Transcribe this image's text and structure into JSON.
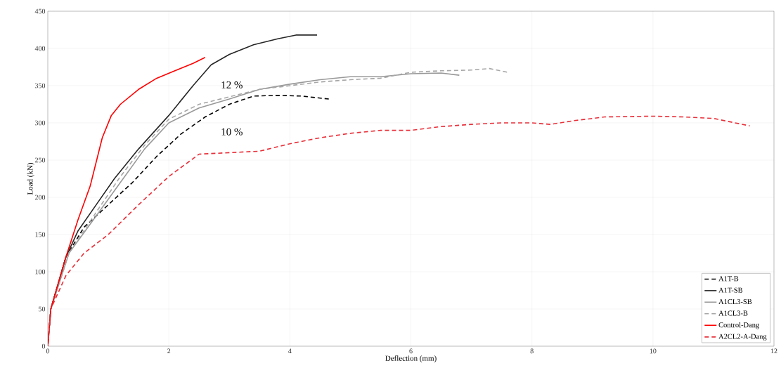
{
  "chart_data": {
    "type": "line",
    "xlabel": "Deflection (mm)",
    "ylabel": "Load (kN)",
    "xlim": [
      0,
      12
    ],
    "ylim": [
      0,
      450
    ],
    "xticks": [
      0,
      2,
      4,
      6,
      8,
      10,
      12
    ],
    "yticks": [
      0,
      50,
      100,
      150,
      200,
      250,
      300,
      350,
      400,
      450
    ],
    "grid": true,
    "legend": "bottom right",
    "marker": "none",
    "annotations": [
      "12 %",
      "10 %"
    ],
    "series": [
      {
        "name": "A1T-B",
        "color": "#000000",
        "line_style": "dashed",
        "x": [
          0,
          0.05,
          0.3,
          0.6,
          1.0,
          1.4,
          1.8,
          2.2,
          2.6,
          3.0,
          3.4,
          3.8,
          4.2,
          4.65
        ],
        "values": [
          0,
          50,
          120,
          160,
          190,
          220,
          255,
          285,
          308,
          325,
          336,
          337,
          336,
          332
        ]
      },
      {
        "name": "A1T-SB",
        "color": "#262626",
        "line_style": "solid",
        "x": [
          0,
          0.05,
          0.3,
          0.5,
          0.8,
          1.1,
          1.5,
          2.0,
          2.4,
          2.7,
          3.0,
          3.4,
          3.8,
          4.1,
          4.45
        ],
        "values": [
          0,
          50,
          120,
          155,
          190,
          225,
          265,
          310,
          350,
          378,
          392,
          405,
          413,
          418,
          418
        ]
      },
      {
        "name": "A1CL3-SB",
        "color": "#999999",
        "line_style": "solid",
        "x": [
          0,
          0.05,
          0.35,
          0.8,
          1.2,
          1.6,
          2.0,
          2.5,
          3.0,
          3.5,
          4.0,
          4.5,
          5.0,
          5.5,
          6.0,
          6.5,
          6.8
        ],
        "values": [
          0,
          50,
          125,
          175,
          220,
          265,
          300,
          320,
          332,
          345,
          352,
          358,
          362,
          362,
          366,
          367,
          364
        ]
      },
      {
        "name": "A1CL3-B",
        "color": "#a6a6a6",
        "line_style": "dashed",
        "x": [
          0,
          0.05,
          0.35,
          0.8,
          1.2,
          1.6,
          2.0,
          2.5,
          3.0,
          3.5,
          4.0,
          4.5,
          5.0,
          5.5,
          6.0,
          6.5,
          7.0,
          7.3,
          7.6
        ],
        "values": [
          0,
          50,
          125,
          180,
          228,
          270,
          305,
          325,
          335,
          345,
          350,
          355,
          358,
          360,
          368,
          370,
          371,
          373,
          368
        ]
      },
      {
        "name": "Control-Dang",
        "color": "#ff0000",
        "line_style": "solid",
        "x": [
          0,
          0.05,
          0.3,
          0.5,
          0.7,
          0.9,
          1.05,
          1.2,
          1.5,
          1.8,
          2.1,
          2.4,
          2.6
        ],
        "values": [
          0,
          50,
          120,
          170,
          215,
          280,
          310,
          325,
          345,
          360,
          370,
          380,
          388
        ]
      },
      {
        "name": "A2CL2-A-Dang",
        "color": "#e8303a",
        "line_style": "dashed",
        "x": [
          0,
          0.05,
          0.3,
          0.6,
          1.0,
          1.5,
          2.0,
          2.5,
          3.0,
          3.5,
          4.0,
          4.5,
          5.0,
          5.5,
          6.0,
          6.5,
          7.0,
          7.5,
          8.0,
          8.3,
          8.7,
          9.2,
          10.0,
          10.5,
          11.0,
          11.6
        ],
        "values": [
          0,
          50,
          95,
          125,
          150,
          190,
          228,
          258,
          260,
          262,
          272,
          280,
          286,
          290,
          290,
          295,
          298,
          300,
          300,
          298,
          303,
          308,
          309,
          308,
          306,
          296
        ]
      }
    ]
  }
}
